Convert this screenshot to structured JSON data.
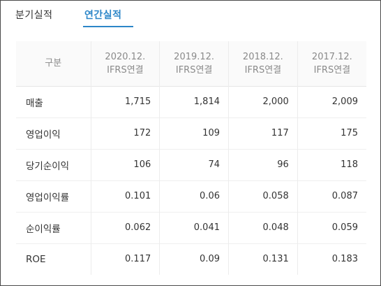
{
  "tabs": [
    {
      "label": "분기실적",
      "active": false
    },
    {
      "label": "연간실적",
      "active": true
    }
  ],
  "accent_color": "#2c86c8",
  "table": {
    "corner_label": "구분",
    "columns": [
      {
        "period": "2020.12.",
        "basis": "IFRS연결"
      },
      {
        "period": "2019.12.",
        "basis": "IFRS연결"
      },
      {
        "period": "2018.12.",
        "basis": "IFRS연결"
      },
      {
        "period": "2017.12.",
        "basis": "IFRS연결"
      }
    ],
    "rows": [
      {
        "label": "매출",
        "values": [
          "1,715",
          "1,814",
          "2,000",
          "2,009"
        ]
      },
      {
        "label": "영업이익",
        "values": [
          "172",
          "109",
          "117",
          "175"
        ]
      },
      {
        "label": "당기순이익",
        "values": [
          "106",
          "74",
          "96",
          "118"
        ]
      },
      {
        "label": "영업이익률",
        "values": [
          "0.101",
          "0.06",
          "0.058",
          "0.087"
        ]
      },
      {
        "label": "순이익률",
        "values": [
          "0.062",
          "0.041",
          "0.048",
          "0.059"
        ]
      },
      {
        "label": "ROE",
        "values": [
          "0.117",
          "0.09",
          "0.131",
          "0.183"
        ]
      }
    ]
  }
}
